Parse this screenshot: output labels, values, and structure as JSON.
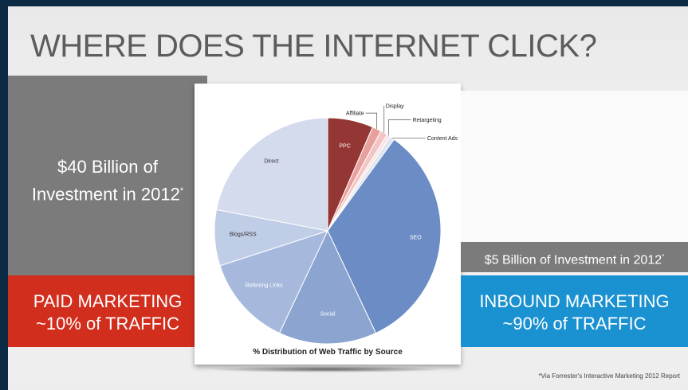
{
  "slide": {
    "title": "WHERE DOES THE INTERNET CLICK?",
    "paid": {
      "investment_line1": "$40 Billion of",
      "investment_line2": "Investment in 2012",
      "footnote_mark": "*",
      "label_line1": "PAID MARKETING",
      "label_line2": "~10% of TRAFFIC",
      "color": "#d22e1e"
    },
    "inbound": {
      "investment": "$5 Billion of Investment in 2012",
      "footnote_mark": "*",
      "label_line1": "INBOUND MARKETING",
      "label_line2": "~90% of TRAFFIC",
      "color": "#1a91d1"
    },
    "footnote": "*Via Forrester's Interactive Marketing 2012 Report"
  },
  "chart_data": {
    "type": "pie",
    "title": "% Distribution of Web Traffic by Source",
    "start_angle_deg": 0,
    "direction": "clockwise",
    "slices": [
      {
        "label": "PPC",
        "value": 6.5,
        "color": "#943634",
        "label_position": "inside"
      },
      {
        "label": "Affiliate",
        "value": 1.3,
        "color": "#e8a09e",
        "label_position": "outside"
      },
      {
        "label": "Display",
        "value": 1.0,
        "color": "#f2c4c3",
        "label_position": "outside"
      },
      {
        "label": "Retargeting",
        "value": 0.5,
        "color": "#fbe3e3",
        "label_position": "outside"
      },
      {
        "label": "Content Ads",
        "value": 0.7,
        "color": "#dfe6f1",
        "label_position": "outside"
      },
      {
        "label": "SEO",
        "value": 33.0,
        "color": "#6b8cc4",
        "label_position": "inside"
      },
      {
        "label": "Social",
        "value": 14.0,
        "color": "#8ba4d0",
        "label_position": "inside"
      },
      {
        "label": "Referring Links",
        "value": 13.0,
        "color": "#a6b9dd",
        "label_position": "inside"
      },
      {
        "label": "Blogs/RSS",
        "value": 8.0,
        "color": "#c0cde6",
        "label_position": "inside"
      },
      {
        "label": "Direct",
        "value": 22.0,
        "color": "#d3dbec",
        "label_position": "inside"
      }
    ]
  }
}
